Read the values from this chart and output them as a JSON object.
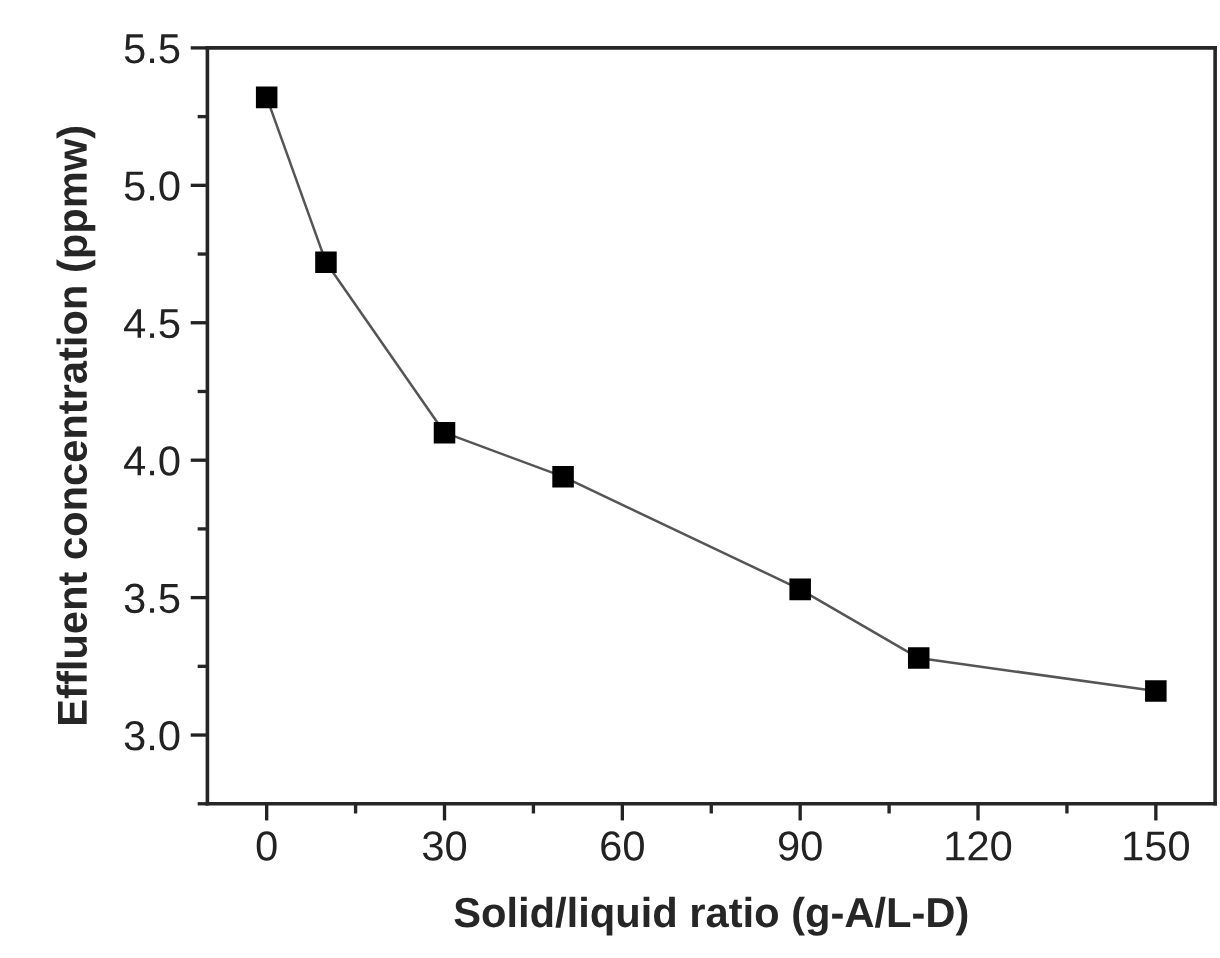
{
  "chart_data": {
    "type": "line",
    "xlabel": "Solid/liquid ratio (g-A/L-D)",
    "ylabel": "Effluent concentration (ppmw)",
    "x": [
      0,
      10,
      30,
      50,
      90,
      110,
      150
    ],
    "series": [
      {
        "color": "#000000",
        "values": [
          5.32,
          4.72,
          4.1,
          3.94,
          3.53,
          3.28,
          3.16
        ]
      }
    ],
    "xlim": [
      -10,
      160
    ],
    "xticks": [
      0,
      30,
      60,
      90,
      120,
      150
    ],
    "ylim": [
      2.75,
      5.5
    ],
    "yticks": [
      {
        "value": 3.0,
        "label": "3.0"
      },
      {
        "value": 3.5,
        "label": "3.5"
      },
      {
        "value": 4.0,
        "label": "4.0"
      },
      {
        "value": 4.5,
        "label": "4.5"
      },
      {
        "value": 5.0,
        "label": "5.0"
      },
      {
        "value": 5.5,
        "label": "5.5"
      }
    ],
    "marker": "square",
    "line_style": "solid",
    "grid": false,
    "legend": false
  }
}
